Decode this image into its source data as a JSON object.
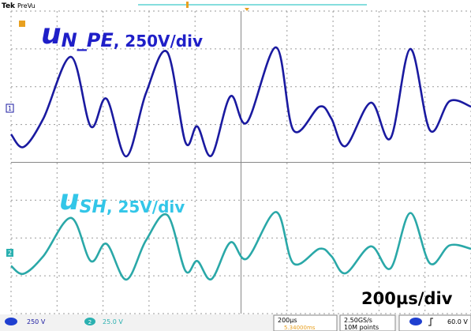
{
  "header": {
    "brand": "Tek",
    "mode": "PreVu"
  },
  "markers": {
    "ch1": "1",
    "ch2": "2"
  },
  "labels": {
    "ch1": {
      "symbol": "u",
      "subscript": "N_PE",
      "scale": ", 250V/div"
    },
    "ch2": {
      "symbol": "u",
      "subscript": "SH",
      "scale": ", 25V/div"
    },
    "timebase": "200µs/div"
  },
  "status_bar": {
    "ch1_scale": "250 V",
    "ch2_number": "2",
    "ch2_scale": "25.0 V",
    "horizontal_scale": "200µs",
    "trigger_position": "5.34000ms",
    "sample_rate": "2.50GS/s",
    "record_length": "10M points",
    "trigger_level": "60.0 V"
  }
}
